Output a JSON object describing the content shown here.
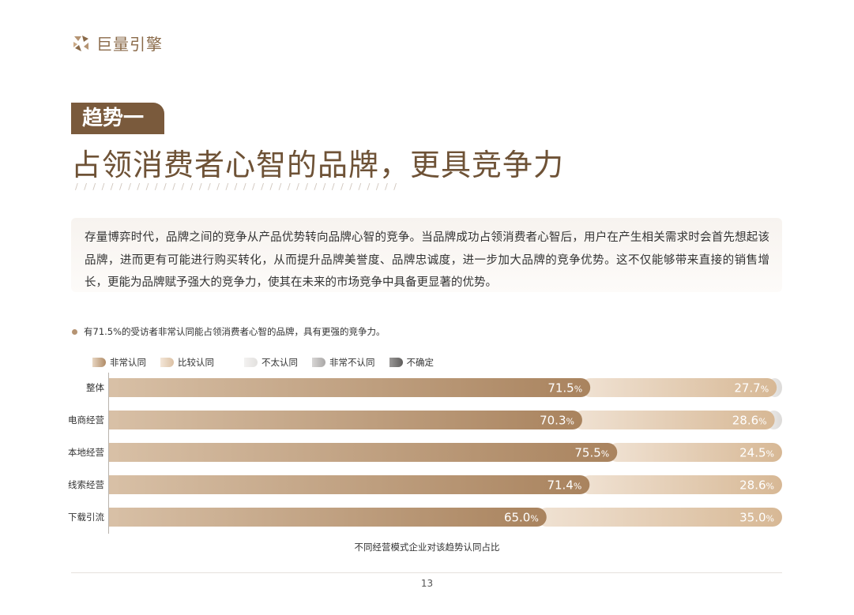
{
  "brand": {
    "name": "巨量引擎"
  },
  "section": {
    "tag": "趋势一",
    "headline": "占领消费者心智的品牌，更具竞争力",
    "intro": "存量博弈时代，品牌之间的竞争从产品优势转向品牌心智的竞争。当品牌成功占领消费者心智后，用户在产生相关需求时会首先想起该品牌，进而更有可能进行购买转化，从而提升品牌美誉度、品牌忠诚度，进一步加大品牌的竞争优势。这不仅能够带来直接的销售增长，更能为品牌赋予强大的竞争力，使其在未来的市场竞争中具备更显著的优势。",
    "finding": "有71.5%的受访者非常认同能占领消费者心智的品牌，具有更强的竞争力。"
  },
  "chart_data": {
    "type": "bar",
    "orientation": "horizontal",
    "stacked": true,
    "title": "不同经营模式企业对该趋势认同占比",
    "categories": [
      "整体",
      "电商经营",
      "本地经营",
      "线索经营",
      "下载引流"
    ],
    "series": [
      {
        "name": "非常认同",
        "values": [
          71.5,
          70.3,
          75.5,
          71.4,
          65.0
        ],
        "labels": [
          "71.5%",
          "70.3%",
          "75.5%",
          "71.4%",
          "65.0%"
        ],
        "color": "#b08b66"
      },
      {
        "name": "比较认同",
        "values": [
          27.7,
          28.6,
          24.5,
          28.6,
          35.0
        ],
        "labels": [
          "27.7%",
          "28.6%",
          "24.5%",
          "28.6%",
          "35.0%"
        ],
        "color": "#dcc1a4"
      },
      {
        "name": "不太认同",
        "values": [
          0.8,
          1.1,
          0,
          0,
          0
        ],
        "labels": [
          "",
          "",
          "",
          "",
          ""
        ],
        "color": "#e6e4e2"
      },
      {
        "name": "非常不认同",
        "values": [
          0,
          0,
          0,
          0,
          0
        ],
        "labels": [
          "",
          "",
          "",
          "",
          ""
        ],
        "color": "#b3b1b0"
      },
      {
        "name": "不确定",
        "values": [
          0,
          0,
          0,
          0,
          0
        ],
        "labels": [
          "",
          "",
          "",
          "",
          ""
        ],
        "color": "#6f6d6c"
      }
    ],
    "xlim": [
      0,
      100
    ],
    "legend_position": "top-left",
    "grid": false
  },
  "footer": {
    "page": "13"
  }
}
